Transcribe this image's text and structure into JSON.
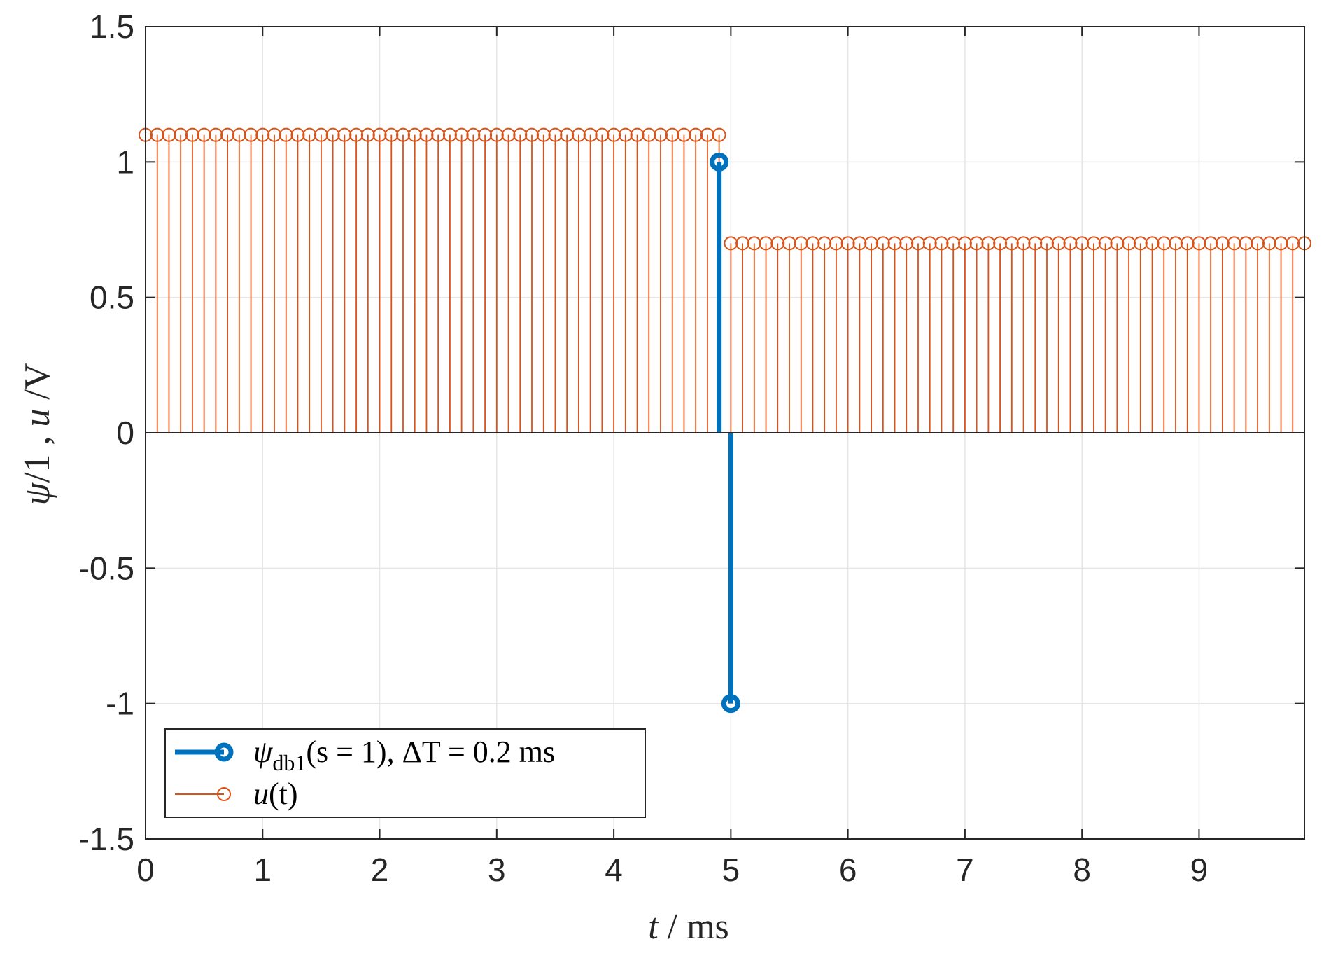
{
  "chart_data": {
    "type": "stem",
    "xlabel_var": "t",
    "xlabel_unit": "ms",
    "ylabel_psi": "ψ",
    "ylabel_rest": "/1 , ",
    "ylabel_u": "u",
    "ylabel_unit": " /V",
    "xlim": [
      0,
      9.9
    ],
    "ylim": [
      -1.5,
      1.5
    ],
    "xticks": [
      0,
      1,
      2,
      3,
      4,
      5,
      6,
      7,
      8,
      9
    ],
    "xtick_labels": [
      "0",
      "1",
      "2",
      "3",
      "4",
      "5",
      "6",
      "7",
      "8",
      "9"
    ],
    "yticks": [
      1.5,
      1,
      0.5,
      0,
      -0.5,
      -1,
      -1.5
    ],
    "ytick_labels": [
      "1.5",
      "1",
      "0.5",
      "0",
      "-0.5",
      "-1",
      "-1.5"
    ],
    "grid": true,
    "legend_position": "bottom-left",
    "series": [
      {
        "name": "ψ_db1(s = 1), ΔT = 0.2 ms",
        "legend_main": "ψ",
        "legend_sub": "db1",
        "legend_rest": "(s = 1), ΔT = 0.2 ms",
        "color": "#0072BD",
        "x": [
          4.9,
          5.0
        ],
        "y": [
          1,
          -1
        ]
      },
      {
        "name": "u(t)",
        "legend_main": "u",
        "legend_rest": "(t)",
        "color": "#D95319",
        "x_start": 0,
        "x_step": 0.1,
        "count": 100,
        "segments": [
          {
            "from": 0,
            "to": 4.9,
            "value": 1.1
          },
          {
            "from": 5.0,
            "to": 9.9,
            "value": 0.7
          }
        ]
      }
    ]
  }
}
